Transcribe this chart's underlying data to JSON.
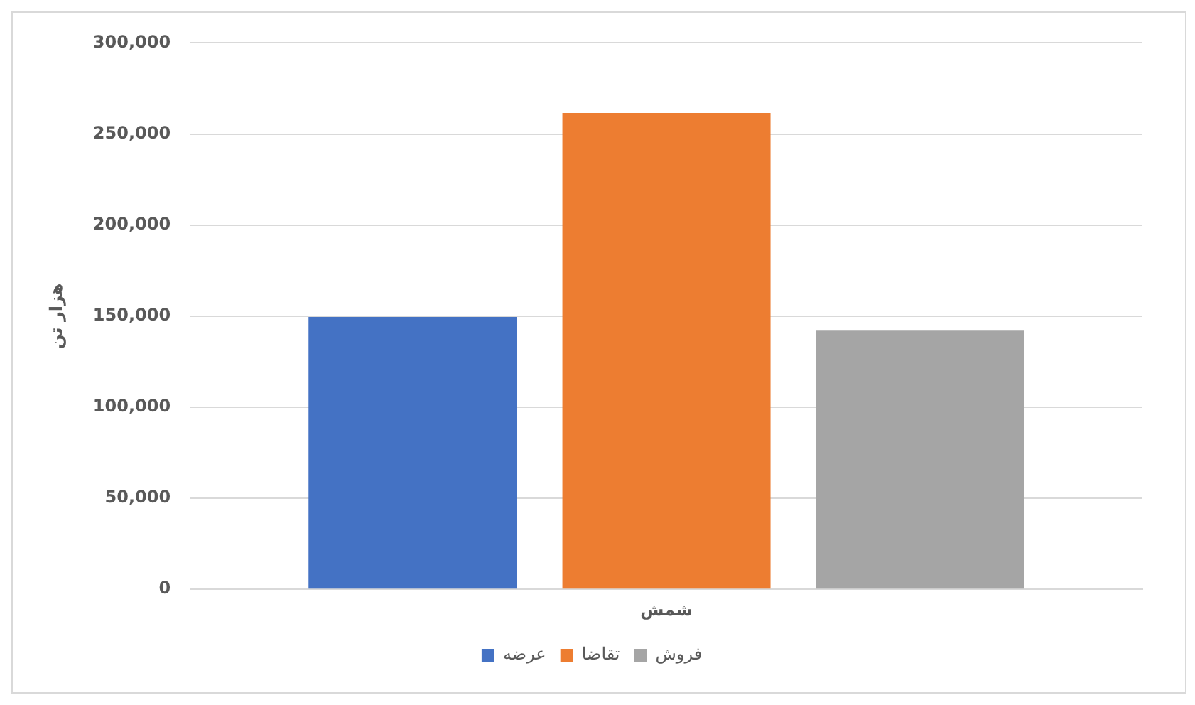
{
  "chart_data": {
    "type": "bar",
    "ylabel": "هزار تن",
    "categories": [
      "شمش"
    ],
    "series": [
      {
        "name": "عرضه",
        "color": "#4472c4",
        "values": [
          149500
        ]
      },
      {
        "name": "تقاضا",
        "color": "#ed7d31",
        "values": [
          261500
        ]
      },
      {
        "name": "فروش",
        "color": "#a5a5a5",
        "values": [
          142000
        ]
      }
    ],
    "ylim": [
      0,
      300000
    ],
    "yticks": [
      {
        "value": 0,
        "label": "0"
      },
      {
        "value": 50000,
        "label": "50,000"
      },
      {
        "value": 100000,
        "label": "100,000"
      },
      {
        "value": 150000,
        "label": "150,000"
      },
      {
        "value": 200000,
        "label": "200,000"
      },
      {
        "value": 250000,
        "label": "250,000"
      },
      {
        "value": 300000,
        "label": "300,000"
      }
    ],
    "grid": "y",
    "legend": "bottom"
  }
}
